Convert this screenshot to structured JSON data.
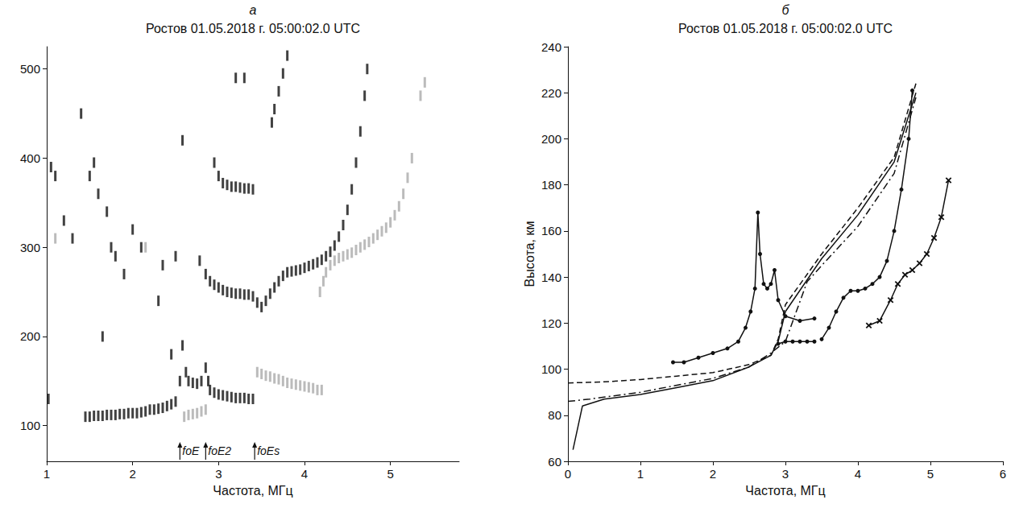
{
  "chart_data": [
    {
      "type": "scatter",
      "panel": "а",
      "title": "Ростов 01.05.2018 г. 05:00:02.0 UTC",
      "x_label": "Частота, МГц",
      "xlim": [
        1,
        5.8
      ],
      "xticks": [
        1,
        2,
        3,
        4,
        5
      ],
      "ylim": [
        60,
        525
      ],
      "yticks": [
        100,
        200,
        300,
        400,
        500
      ],
      "grid": false,
      "series": [
        {
          "color": "#111111",
          "marker": "vline",
          "x": [
            1.45,
            1.5,
            1.55,
            1.6,
            1.65,
            1.7,
            1.75,
            1.8,
            1.85,
            1.9,
            1.95,
            2,
            2.05,
            2.1,
            2.15,
            2.2,
            2.25,
            2.3,
            2.35,
            2.4,
            2.45,
            2.5,
            2.55,
            2.58,
            2.62,
            2.65,
            2.7,
            2.75,
            2.8,
            2.85,
            2.88,
            2.9,
            2.95,
            3,
            3.05,
            3.1,
            3.15,
            3.2,
            3.25,
            3.3,
            3.35,
            3.4
          ],
          "values": [
            110,
            110,
            111,
            111,
            111,
            112,
            112,
            112,
            113,
            113,
            114,
            114,
            114,
            115,
            116,
            118,
            118,
            119,
            120,
            122,
            124,
            127,
            150,
            190,
            160,
            150,
            148,
            147,
            150,
            165,
            150,
            140,
            137,
            135,
            134,
            133,
            132,
            131,
            131,
            131,
            130,
            130
          ]
        },
        {
          "color": "#111111",
          "marker": "vline",
          "x": [
            2.78,
            2.85,
            2.9,
            2.95,
            3,
            3.05,
            3.1,
            3.15,
            3.2,
            3.25,
            3.3,
            3.35,
            3.4,
            3.45,
            3.5,
            3.55,
            3.6,
            3.65,
            3.7,
            3.75,
            3.8,
            3.85,
            3.9,
            3.95,
            4,
            4.05,
            4.1,
            4.15,
            4.2,
            4.25,
            4.3,
            4.35,
            4.4,
            4.45,
            4.5,
            4.55,
            4.6,
            4.65,
            4.7,
            4.73
          ],
          "values": [
            285,
            270,
            262,
            258,
            255,
            252,
            250,
            249,
            248,
            248,
            247,
            247,
            245,
            238,
            233,
            240,
            248,
            255,
            262,
            268,
            272,
            273,
            274,
            275,
            277,
            279,
            281,
            283,
            286,
            290,
            295,
            302,
            312,
            325,
            342,
            365,
            395,
            430,
            470,
            500
          ]
        },
        {
          "color": "#111111",
          "marker": "vline",
          "x": [
            2.95,
            3,
            3.05,
            3.1,
            3.15,
            3.2,
            3.25,
            3.3,
            3.35,
            3.4,
            3.62,
            3.65,
            3.7,
            3.75,
            3.8,
            3.2,
            3.3,
            1.05,
            1.1,
            1.2,
            1.3,
            1.4,
            1.5,
            1.55,
            1.6,
            1.65,
            1.7,
            1.75,
            1.8,
            1.9,
            2,
            2.1,
            2.3,
            2.35,
            2.45,
            2.5,
            2.58,
            1.02
          ],
          "values": [
            395,
            380,
            372,
            370,
            368,
            368,
            367,
            366,
            366,
            365,
            440,
            455,
            475,
            495,
            515,
            490,
            490,
            390,
            380,
            330,
            310,
            450,
            380,
            395,
            360,
            200,
            340,
            300,
            290,
            270,
            320,
            300,
            240,
            280,
            180,
            290,
            420,
            130
          ]
        },
        {
          "color": "#aaaaaa",
          "marker": "vline",
          "x": [
            2.6,
            2.65,
            2.7,
            2.75,
            2.8,
            2.85,
            3.45,
            3.5,
            3.55,
            3.6,
            3.65,
            3.7,
            3.75,
            3.8,
            3.85,
            3.9,
            3.95,
            4,
            4.05,
            4.1,
            4.15,
            4.2,
            4.18,
            4.22,
            4.25,
            4.3,
            4.35,
            4.4,
            4.45,
            4.5,
            4.55,
            4.6,
            4.65,
            4.7,
            4.75,
            4.8,
            4.85,
            4.9,
            4.95,
            5,
            5.05,
            5.1,
            5.15,
            5.2,
            5.25,
            5.35,
            5.4,
            1.1,
            2.15
          ],
          "values": [
            110,
            112,
            113,
            114,
            116,
            118,
            160,
            158,
            156,
            155,
            153,
            152,
            150,
            148,
            147,
            146,
            145,
            144,
            143,
            142,
            140,
            140,
            250,
            262,
            272,
            280,
            285,
            288,
            290,
            292,
            294,
            297,
            300,
            303,
            306,
            310,
            314,
            318,
            322,
            328,
            336,
            346,
            360,
            378,
            400,
            470,
            485,
            310,
            300
          ]
        }
      ],
      "annotations": [
        {
          "text": "foE",
          "x": 2.55
        },
        {
          "text": "foE2",
          "x": 2.85
        },
        {
          "text": "foEs",
          "x": 3.42
        }
      ]
    },
    {
      "type": "line",
      "panel": "б",
      "title": "Ростов 01.05.2018 г. 05:00:02.0 UTC",
      "x_label": "Частота, МГц",
      "y_label": "Высота, км",
      "xlim": [
        0,
        6
      ],
      "xticks": [
        0,
        1,
        2,
        3,
        4,
        5,
        6
      ],
      "ylim": [
        60,
        240
      ],
      "yticks": [
        60,
        80,
        100,
        120,
        140,
        160,
        180,
        200,
        220,
        240
      ],
      "grid": false,
      "series": [
        {
          "color": "#111111",
          "marker": "none",
          "line_style": "solid",
          "x": [
            0.07,
            0.2,
            0.5,
            1,
            1.5,
            2,
            2.5,
            2.8,
            2.9,
            3,
            3.5,
            4,
            4.5,
            4.8
          ],
          "values": [
            65,
            84,
            87,
            89,
            92,
            95,
            101,
            106,
            112,
            125,
            148,
            167,
            190,
            220
          ]
        },
        {
          "color": "#111111",
          "marker": "none",
          "line_style": "dashed",
          "x": [
            0,
            0.5,
            1,
            1.5,
            2,
            2.5,
            2.8,
            2.9,
            3,
            3.5,
            4,
            4.5,
            4.8
          ],
          "values": [
            94,
            94.5,
            95.5,
            97,
            98.5,
            102,
            106,
            113,
            128,
            150,
            170,
            192,
            224
          ]
        },
        {
          "color": "#111111",
          "marker": "none",
          "line_style": "dashdot",
          "x": [
            0,
            0.3,
            1,
            2,
            2.5,
            2.8,
            3,
            3.3,
            3.5,
            4,
            4.5,
            4.8
          ],
          "values": [
            86,
            87,
            90,
            96,
            101,
            107,
            112,
            138,
            145,
            162,
            185,
            218
          ]
        },
        {
          "color": "#111111",
          "marker": "circle",
          "line_style": "solid",
          "x": [
            1.45,
            1.6,
            1.8,
            2,
            2.2,
            2.35,
            2.45,
            2.52,
            2.58,
            2.62,
            2.65,
            2.7,
            2.75,
            2.8,
            2.85,
            2.9,
            3,
            3.2,
            3.4,
            3.45,
            3.5,
            3.6,
            3.7,
            3.8,
            3.9,
            4,
            4.1,
            4.2,
            4.3,
            4.4,
            4.5,
            4.6,
            4.7,
            4.75
          ],
          "values": [
            103,
            103,
            105,
            107,
            109,
            112,
            118,
            125,
            135,
            168,
            150,
            137,
            135,
            137,
            143,
            130,
            123,
            121,
            122,
            null,
            113,
            118,
            125,
            131,
            134,
            134,
            135,
            137,
            140,
            147,
            160,
            178,
            200,
            221
          ]
        },
        {
          "color": "#111111",
          "marker": "circle",
          "line_style": "solid",
          "x": [
            2.9,
            3,
            3.1,
            3.2,
            3.3,
            3.4
          ],
          "values": [
            111,
            112,
            112,
            112,
            112,
            112
          ]
        },
        {
          "color": "#111111",
          "marker": "cross",
          "line_style": "solid",
          "x": [
            4.15,
            4.3,
            4.45,
            4.55,
            4.65,
            4.75,
            4.85,
            4.95,
            5.05,
            5.15,
            5.25
          ],
          "values": [
            119,
            121,
            130,
            137,
            141,
            143,
            146,
            150,
            157,
            166,
            182
          ]
        }
      ]
    }
  ]
}
